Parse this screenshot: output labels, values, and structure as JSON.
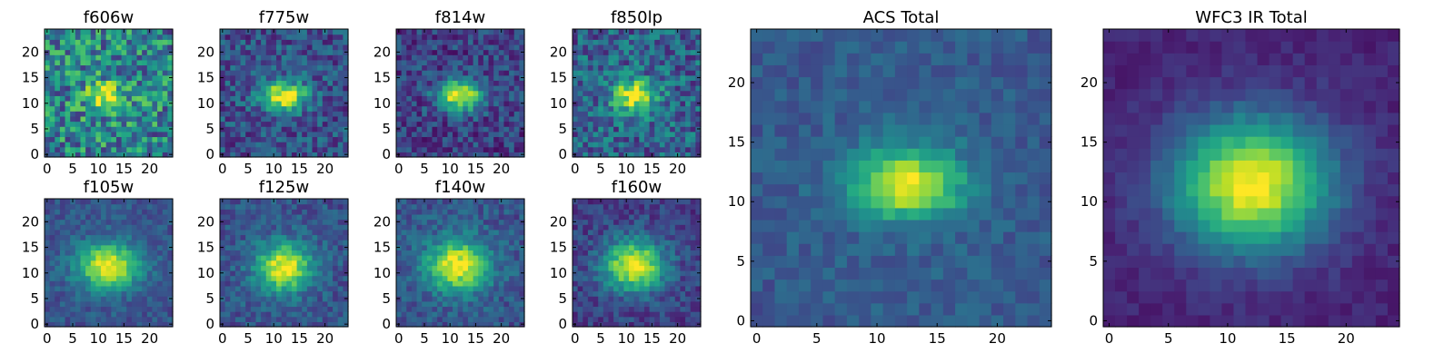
{
  "colormap": "viridis",
  "frame_color": "#000000",
  "background": "#ffffff",
  "chart_data": [
    {
      "type": "heatmap",
      "title": "f606w",
      "size": 25,
      "xticks": [
        0,
        5,
        10,
        15,
        20
      ],
      "yticks": [
        0,
        5,
        10,
        15,
        20
      ],
      "xlim": [
        -0.5,
        24.5
      ],
      "ylim": [
        -0.5,
        24.5
      ],
      "peak": [
        11.5,
        11.5
      ],
      "sigma": [
        2.4,
        1.7
      ],
      "background_level": 0.5,
      "noise": 0.3,
      "seed": 11
    },
    {
      "type": "heatmap",
      "title": "f775w",
      "size": 25,
      "xticks": [
        0,
        5,
        10,
        15,
        20
      ],
      "yticks": [
        0,
        5,
        10,
        15,
        20
      ],
      "xlim": [
        -0.5,
        24.5
      ],
      "ylim": [
        -0.5,
        24.5
      ],
      "peak": [
        12,
        11.5
      ],
      "sigma": [
        3.0,
        2.0
      ],
      "background_level": 0.28,
      "noise": 0.18,
      "seed": 22
    },
    {
      "type": "heatmap",
      "title": "f814w",
      "size": 25,
      "xticks": [
        0,
        5,
        10,
        15,
        20
      ],
      "yticks": [
        0,
        5,
        10,
        15,
        20
      ],
      "xlim": [
        -0.5,
        24.5
      ],
      "ylim": [
        -0.5,
        24.5
      ],
      "peak": [
        12,
        11.5
      ],
      "sigma": [
        3.0,
        2.0
      ],
      "background_level": 0.22,
      "noise": 0.17,
      "seed": 33
    },
    {
      "type": "heatmap",
      "title": "f850lp",
      "size": 25,
      "xticks": [
        0,
        5,
        10,
        15,
        20
      ],
      "yticks": [
        0,
        5,
        10,
        15,
        20
      ],
      "xlim": [
        -0.5,
        24.5
      ],
      "ylim": [
        -0.5,
        24.5
      ],
      "peak": [
        11.5,
        11.5
      ],
      "sigma": [
        3.0,
        2.1
      ],
      "background_level": 0.35,
      "noise": 0.22,
      "seed": 44
    },
    {
      "type": "heatmap",
      "title": "f105w",
      "size": 25,
      "xticks": [
        0,
        5,
        10,
        15,
        20
      ],
      "yticks": [
        0,
        5,
        10,
        15,
        20
      ],
      "xlim": [
        -0.5,
        24.5
      ],
      "ylim": [
        -0.5,
        24.5
      ],
      "peak": [
        12,
        11.5
      ],
      "sigma": [
        4.2,
        3.0
      ],
      "background_level": 0.3,
      "noise": 0.1,
      "seed": 55
    },
    {
      "type": "heatmap",
      "title": "f125w",
      "size": 25,
      "xticks": [
        0,
        5,
        10,
        15,
        20
      ],
      "yticks": [
        0,
        5,
        10,
        15,
        20
      ],
      "xlim": [
        -0.5,
        24.5
      ],
      "ylim": [
        -0.5,
        24.5
      ],
      "peak": [
        12,
        11
      ],
      "sigma": [
        3.6,
        3.2
      ],
      "background_level": 0.3,
      "noise": 0.12,
      "seed": 66
    },
    {
      "type": "heatmap",
      "title": "f140w",
      "size": 25,
      "xticks": [
        0,
        5,
        10,
        15,
        20
      ],
      "yticks": [
        0,
        5,
        10,
        15,
        20
      ],
      "xlim": [
        -0.5,
        24.5
      ],
      "ylim": [
        -0.5,
        24.5
      ],
      "peak": [
        11.5,
        11.5
      ],
      "sigma": [
        4.2,
        3.4
      ],
      "background_level": 0.3,
      "noise": 0.12,
      "seed": 77
    },
    {
      "type": "heatmap",
      "title": "f160w",
      "size": 25,
      "xticks": [
        0,
        5,
        10,
        15,
        20
      ],
      "yticks": [
        0,
        5,
        10,
        15,
        20
      ],
      "xlim": [
        -0.5,
        24.5
      ],
      "ylim": [
        -0.5,
        24.5
      ],
      "peak": [
        11.5,
        11.5
      ],
      "sigma": [
        4.0,
        3.4
      ],
      "background_level": 0.22,
      "noise": 0.12,
      "seed": 88
    },
    {
      "type": "heatmap",
      "title": "ACS Total",
      "size": 25,
      "xticks": [
        0,
        5,
        10,
        15,
        20
      ],
      "yticks": [
        0,
        5,
        10,
        15,
        20
      ],
      "xlim": [
        -0.5,
        24.5
      ],
      "ylim": [
        -0.5,
        24.5
      ],
      "peak": [
        12.5,
        11.5
      ],
      "sigma": [
        3.2,
        2.0
      ],
      "background_level": 0.32,
      "noise": 0.08,
      "seed": 99
    },
    {
      "type": "heatmap",
      "title": "WFC3 IR Total",
      "size": 25,
      "xticks": [
        0,
        5,
        10,
        15,
        20
      ],
      "yticks": [
        0,
        5,
        10,
        15,
        20
      ],
      "xlim": [
        -0.5,
        24.5
      ],
      "ylim": [
        -0.5,
        24.5
      ],
      "peak": [
        12,
        11.5
      ],
      "sigma": [
        4.6,
        3.8
      ],
      "background_level": 0.12,
      "noise": 0.05,
      "seed": 123
    }
  ]
}
